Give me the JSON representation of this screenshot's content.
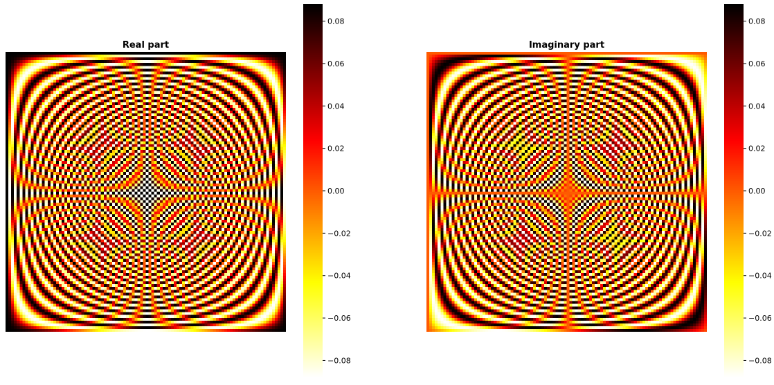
{
  "chart_data": [
    {
      "type": "heatmap",
      "title": "Real part",
      "xlabel": "",
      "ylabel": "",
      "colormap": "hot_r",
      "grid_size": 100,
      "vmin": -0.088,
      "vmax": 0.088,
      "colorbar_ticks": [
        0.08,
        0.06,
        0.04,
        0.02,
        0.0,
        -0.02,
        -0.04,
        -0.06,
        -0.08
      ],
      "colorbar_tick_labels": [
        "0.08",
        "0.06",
        "0.04",
        "0.02",
        "0.00",
        "−0.02",
        "−0.04",
        "−0.06",
        "−0.08"
      ],
      "axes_visible": false
    },
    {
      "type": "heatmap",
      "title": "Imaginary part",
      "xlabel": "",
      "ylabel": "",
      "colormap": "hot_r",
      "grid_size": 100,
      "vmin": -0.088,
      "vmax": 0.088,
      "colorbar_ticks": [
        0.08,
        0.06,
        0.04,
        0.02,
        0.0,
        -0.02,
        -0.04,
        -0.06,
        -0.08
      ],
      "colorbar_tick_labels": [
        "0.08",
        "0.06",
        "0.04",
        "0.02",
        "0.00",
        "−0.02",
        "−0.04",
        "−0.06",
        "−0.08"
      ],
      "axes_visible": false
    }
  ],
  "colors": {
    "colormap_stops": [
      "#ffffff",
      "#ffff00",
      "#ff0000",
      "#000000"
    ]
  }
}
